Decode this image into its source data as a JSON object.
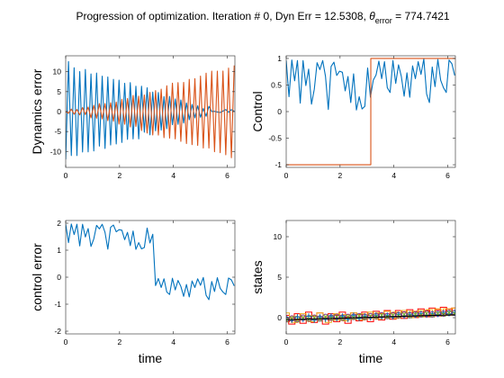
{
  "figure": {
    "title_main": "Progression of optimization. Iteration # 0, Dyn Err = 12.5308,  ",
    "title_theta": "θ",
    "title_sub": "error",
    "title_value": " = 774.7421"
  },
  "colors": {
    "blue": "#0072bd",
    "orange": "#d95319",
    "yellow": "#edb120",
    "purple": "#7e2f8e",
    "green": "#77ac30",
    "red": "#ff0000",
    "black": "#000000"
  },
  "chart_data": [
    {
      "type": "line",
      "ylabel": "Dynamics error",
      "xlim": [
        0,
        6.2832
      ],
      "ylim": [
        -14,
        14
      ],
      "xticks": [
        0,
        2,
        4,
        6
      ],
      "yticks": [
        -10,
        -5,
        0,
        5,
        10
      ],
      "series": [
        {
          "color": "blue",
          "x": [
            0,
            0.104,
            0.209,
            0.313,
            0.417,
            0.521,
            0.626,
            0.73,
            0.834,
            0.939,
            1.043,
            1.147,
            1.251,
            1.356,
            1.46,
            1.564,
            1.668,
            1.773,
            1.877,
            1.981,
            2.086,
            2.19,
            2.294,
            2.398,
            2.503,
            2.607,
            2.711,
            2.816,
            2.92,
            3.024,
            3.128,
            3.233,
            3.337,
            3.441,
            3.546,
            3.65,
            3.754,
            3.858,
            3.963,
            4.067,
            4.171,
            4.276,
            4.38,
            4.484,
            4.588,
            4.693,
            4.797,
            4.901,
            5.006,
            5.11,
            5.214,
            5.318,
            5.423,
            5.527,
            5.631,
            5.736,
            5.84,
            5.944,
            6.048,
            6.153,
            6.257
          ],
          "y": [
            -11.98,
            12.55,
            -11.02,
            10.99,
            -11.02,
            10.04,
            -10.14,
            10.57,
            -10.11,
            9.45,
            -9.87,
            9.66,
            -8.66,
            8.88,
            -9.26,
            8.68,
            -8.38,
            8.09,
            -8.11,
            7.88,
            -7.74,
            7.11,
            -6.96,
            7.27,
            -6.85,
            6.38,
            -6.84,
            6.37,
            -5.17,
            5.96,
            -5.84,
            4.89,
            -4.81,
            4.8,
            -4.66,
            3.78,
            -4.29,
            3.79,
            -3.28,
            3.18,
            -3.21,
            2.91,
            -2.87,
            2.17,
            -2.04,
            1.8,
            -1.57,
            1.46,
            -1.43,
            0.78,
            -1.18,
            1.32,
            0.02,
            0.06,
            -0.1,
            -0.23,
            0.13,
            0.51,
            -0.17,
            0.49,
            0.09
          ]
        },
        {
          "color": "orange",
          "x": [
            0,
            0.104,
            0.209,
            0.313,
            0.417,
            0.521,
            0.626,
            0.73,
            0.834,
            0.939,
            1.043,
            1.147,
            1.251,
            1.356,
            1.46,
            1.564,
            1.668,
            1.773,
            1.877,
            1.981,
            2.086,
            2.19,
            2.294,
            2.398,
            2.503,
            2.607,
            2.711,
            2.816,
            2.92,
            3.024,
            3.128,
            3.233,
            3.337,
            3.441,
            3.546,
            3.65,
            3.754,
            3.858,
            3.963,
            4.067,
            4.171,
            4.276,
            4.38,
            4.484,
            4.588,
            4.693,
            4.797,
            4.901,
            5.006,
            5.11,
            5.214,
            5.318,
            5.423,
            5.527,
            5.631,
            5.736,
            5.84,
            5.944,
            6.048,
            6.153,
            6.257
          ],
          "y": [
            0.02,
            -0.42,
            0.62,
            -0.66,
            0.53,
            -0.83,
            1.02,
            -0.75,
            1.15,
            -1.58,
            1.57,
            -1.68,
            2.01,
            -1.84,
            2.01,
            -2.27,
            2.21,
            -2.42,
            2.39,
            -3.16,
            3.09,
            -3.18,
            3.29,
            -3.85,
            4.06,
            -3.7,
            3.87,
            -4.75,
            4.16,
            -5.39,
            4.82,
            -5.86,
            5.28,
            -5.89,
            5.64,
            -6.53,
            6.47,
            -6.65,
            7.13,
            -6.84,
            7.27,
            -7.47,
            7.34,
            -8.02,
            8.08,
            -8.28,
            8.25,
            -8.48,
            8.92,
            -9.13,
            9.64,
            -9.15,
            10.15,
            -10.06,
            10.14,
            -10.31,
            10.17,
            -10.83,
            10.9,
            -11.58,
            11.58
          ]
        }
      ]
    },
    {
      "type": "line",
      "ylabel": "Control",
      "xlim": [
        0,
        6.2832
      ],
      "ylim": [
        -1.05,
        1.05
      ],
      "xticks": [
        0,
        2,
        4,
        6
      ],
      "yticks": [
        -1,
        -0.5,
        0,
        0.5,
        1
      ],
      "ytick_labels": [
        "-1",
        "-0.5",
        "0",
        "0.5",
        "1"
      ],
      "series": [
        {
          "color": "blue",
          "x": [
            0,
            0.104,
            0.209,
            0.313,
            0.417,
            0.521,
            0.626,
            0.73,
            0.834,
            0.939,
            1.043,
            1.147,
            1.251,
            1.356,
            1.46,
            1.564,
            1.668,
            1.773,
            1.877,
            1.981,
            2.086,
            2.19,
            2.294,
            2.398,
            2.503,
            2.607,
            2.711,
            2.816,
            2.92,
            3.024,
            3.128,
            3.233,
            3.337,
            3.441,
            3.546,
            3.65,
            3.754,
            3.858,
            3.963,
            4.067,
            4.171,
            4.276,
            4.38,
            4.484,
            4.588,
            4.693,
            4.797,
            4.901,
            5.006,
            5.11,
            5.214,
            5.318,
            5.423,
            5.527,
            5.631,
            5.736,
            5.84,
            5.944,
            6.048,
            6.153,
            6.257
          ],
          "y": [
            0.96,
            0.28,
            0.97,
            0.58,
            0.96,
            0.16,
            0.96,
            0.49,
            0.8,
            0.14,
            0.42,
            0.92,
            0.79,
            0.96,
            0.66,
            0.04,
            0.85,
            0.93,
            0.68,
            0.76,
            0.74,
            0.39,
            0.66,
            0.17,
            0.71,
            0.03,
            0.28,
            0.05,
            0.1,
            0.82,
            0.27,
            0.59,
            0.69,
            0.95,
            0.62,
            0.94,
            0.45,
            0.36,
            0.96,
            0.53,
            0.88,
            0.66,
            0.29,
            0.73,
            0.27,
            0.86,
            0.62,
            0.94,
            0.7,
            0.99,
            0.33,
            0.17,
            0.84,
            0.47,
            0.98,
            0.59,
            0.45,
            0.36,
            0.97,
            0.9,
            0.68
          ]
        },
        {
          "color": "orange",
          "x": [
            0,
            3.142,
            3.142,
            6.2832
          ],
          "y": [
            -1,
            -1,
            1,
            1
          ]
        }
      ]
    },
    {
      "type": "line",
      "ylabel": "control error",
      "xlabel": "time",
      "xlim": [
        0,
        6.2832
      ],
      "ylim": [
        -2.1,
        2.1
      ],
      "xticks": [
        0,
        2,
        4,
        6
      ],
      "yticks": [
        -2,
        -1,
        0,
        1,
        2
      ],
      "series": [
        {
          "color": "blue",
          "x": [
            0,
            0.104,
            0.209,
            0.313,
            0.417,
            0.521,
            0.626,
            0.73,
            0.834,
            0.939,
            1.043,
            1.147,
            1.251,
            1.356,
            1.46,
            1.564,
            1.668,
            1.773,
            1.877,
            1.981,
            2.086,
            2.19,
            2.294,
            2.398,
            2.503,
            2.607,
            2.711,
            2.816,
            2.92,
            3.024,
            3.128,
            3.233,
            3.337,
            3.441,
            3.546,
            3.65,
            3.754,
            3.858,
            3.963,
            4.067,
            4.171,
            4.276,
            4.38,
            4.484,
            4.588,
            4.693,
            4.797,
            4.901,
            5.006,
            5.11,
            5.214,
            5.318,
            5.423,
            5.527,
            5.631,
            5.736,
            5.84,
            5.944,
            6.048,
            6.153,
            6.257
          ],
          "y": [
            1.96,
            1.28,
            1.97,
            1.58,
            1.96,
            1.16,
            1.96,
            1.49,
            1.8,
            1.14,
            1.42,
            1.92,
            1.79,
            1.96,
            1.66,
            1.04,
            1.85,
            1.93,
            1.68,
            1.76,
            1.74,
            1.39,
            1.66,
            1.17,
            1.71,
            1.03,
            1.28,
            1.05,
            1.1,
            1.82,
            1.27,
            1.59,
            -0.31,
            -0.05,
            -0.38,
            -0.06,
            -0.55,
            -0.64,
            -0.04,
            -0.47,
            -0.12,
            -0.34,
            -0.71,
            -0.27,
            -0.73,
            -0.14,
            -0.38,
            -0.06,
            -0.3,
            -0.01,
            -0.67,
            -0.83,
            -0.16,
            -0.53,
            -0.02,
            -0.41,
            -0.55,
            -0.64,
            -0.03,
            -0.1,
            -0.32
          ]
        }
      ]
    },
    {
      "type": "scatter",
      "ylabel": "states",
      "xlabel": "time",
      "xlim": [
        0,
        6.2832
      ],
      "ylim": [
        -2,
        12
      ],
      "xticks": [
        0,
        2,
        4,
        6
      ],
      "yticks": [
        0,
        5,
        10
      ],
      "series": [
        {
          "color": "red",
          "marker": "square",
          "x": [
            0,
            0.209,
            0.417,
            0.626,
            0.834,
            1.043,
            1.251,
            1.46,
            1.668,
            1.877,
            2.086,
            2.294,
            2.503,
            2.711,
            2.92,
            3.128,
            3.337,
            3.546,
            3.754,
            3.963,
            4.171,
            4.38,
            4.588,
            4.797,
            5.006,
            5.214,
            5.423,
            5.631,
            5.84,
            6.048,
            6.257
          ],
          "y": [
            -0.1,
            -0.4,
            0.1,
            -0.3,
            0.3,
            -0.2,
            0.2,
            -0.4,
            0.1,
            -0.1,
            0.3,
            -0.3,
            0.2,
            0,
            0.3,
            -0.1,
            0.4,
            0.1,
            0.5,
            0.2,
            0.5,
            0.3,
            0.6,
            0.4,
            0.7,
            0.5,
            0.8,
            0.6,
            0.9,
            0.7,
            0.8
          ]
        },
        {
          "color": "yellow",
          "marker": "square",
          "x": [
            0,
            0.313,
            0.626,
            0.939,
            1.251,
            1.564,
            1.877,
            2.19,
            2.503,
            2.816,
            3.128,
            3.441,
            3.754,
            4.067,
            4.38,
            4.693,
            5.006,
            5.318,
            5.631,
            5.944,
            6.257
          ],
          "y": [
            0.2,
            -0.2,
            0.1,
            -0.1,
            0.2,
            -0.2,
            0.1,
            0,
            0.2,
            0.1,
            0.3,
            0.2,
            0.4,
            0.3,
            0.5,
            0.4,
            0.5,
            0.6,
            0.7,
            0.7,
            0.8
          ]
        },
        {
          "color": "purple",
          "marker": "circle",
          "x": [
            0,
            0.209,
            0.417,
            0.626,
            0.834,
            1.043,
            1.251,
            1.46,
            1.668,
            1.877,
            2.086,
            2.294,
            2.503,
            2.711,
            2.92,
            3.128,
            3.337,
            3.546,
            3.754,
            3.963,
            4.171,
            4.38,
            4.588,
            4.797,
            5.006,
            5.214,
            5.423,
            5.631,
            5.84,
            6.048,
            6.257
          ],
          "y": [
            -0.2,
            -0.1,
            -0.2,
            0,
            -0.1,
            0,
            -0.1,
            0.1,
            0,
            0.1,
            0,
            0.1,
            0.1,
            0.2,
            0.1,
            0.2,
            0.2,
            0.3,
            0.2,
            0.3,
            0.3,
            0.4,
            0.3,
            0.4,
            0.4,
            0.5,
            0.4,
            0.5,
            0.5,
            0.6,
            0.6
          ]
        },
        {
          "color": "blue",
          "marker": "plus",
          "x": [
            0,
            0.209,
            0.417,
            0.626,
            0.834,
            1.043,
            1.251,
            1.46,
            1.668,
            1.877,
            2.086,
            2.294,
            2.503,
            2.711,
            2.92,
            3.128,
            3.337,
            3.546,
            3.754,
            3.963,
            4.171,
            4.38,
            4.588,
            4.797,
            5.006,
            5.214,
            5.423,
            5.631,
            5.84,
            6.048,
            6.257
          ],
          "y": [
            0,
            -0.3,
            0.1,
            -0.2,
            0.2,
            -0.3,
            0.1,
            -0.2,
            0.2,
            -0.1,
            0.2,
            -0.2,
            0.3,
            -0.1,
            0.2,
            0,
            0.3,
            0.1,
            0.3,
            0.1,
            0.4,
            0.2,
            0.4,
            0.3,
            0.5,
            0.3,
            0.5,
            0.4,
            0.6,
            0.5,
            0.6
          ]
        },
        {
          "color": "green",
          "marker": "x",
          "x": [
            0,
            0.209,
            0.417,
            0.626,
            0.834,
            1.043,
            1.251,
            1.46,
            1.668,
            1.877,
            2.086,
            2.294,
            2.503,
            2.711,
            2.92,
            3.128,
            3.337,
            3.546,
            3.754,
            3.963,
            4.171,
            4.38,
            4.588,
            4.797,
            5.006,
            5.214,
            5.423,
            5.631,
            5.84,
            6.048,
            6.257
          ],
          "y": [
            -0.3,
            -0.1,
            -0.3,
            0,
            -0.2,
            0,
            -0.2,
            0.1,
            -0.1,
            0.1,
            -0.1,
            0.1,
            0,
            0.2,
            0,
            0.2,
            0.1,
            0.3,
            0.1,
            0.3,
            0.2,
            0.4,
            0.2,
            0.4,
            0.3,
            0.5,
            0.3,
            0.5,
            0.4,
            0.6,
            0.5
          ]
        },
        {
          "color": "black",
          "marker": "line",
          "x": [
            0,
            6.257
          ],
          "y": [
            -0.25,
            0.35
          ]
        }
      ]
    }
  ]
}
